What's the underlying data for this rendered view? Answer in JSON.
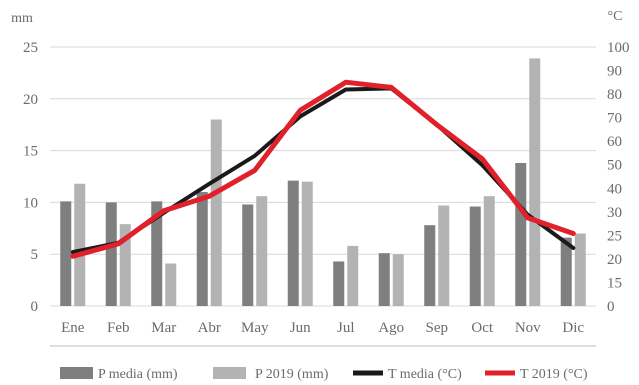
{
  "chart_data": {
    "type": "bar",
    "categories": [
      "Ene",
      "Feb",
      "Mar",
      "Abr",
      "May",
      "Jun",
      "Jul",
      "Ago",
      "Sep",
      "Oct",
      "Nov",
      "Dic"
    ],
    "left_axis": {
      "unit": "mm",
      "ylim": [
        0,
        25
      ],
      "ticks": [
        "0",
        "5",
        "10",
        "15",
        "20",
        "25"
      ]
    },
    "right_axis": {
      "unit": "°C",
      "ylim": [
        0,
        100
      ],
      "ticks": [
        "0",
        "15",
        "20",
        "25",
        "30",
        "40",
        "50",
        "60",
        "70",
        "80",
        "90",
        "100"
      ]
    },
    "grid": true,
    "legend_position": "bottom",
    "series": [
      {
        "name": "P media (mm)",
        "kind": "bar",
        "axis": "left",
        "color": "#7f7f7f",
        "values": [
          10.1,
          10.0,
          10.1,
          11.0,
          9.8,
          12.1,
          4.3,
          5.1,
          7.8,
          9.6,
          13.8,
          6.6
        ]
      },
      {
        "name": "P 2019 (mm)",
        "kind": "bar",
        "axis": "left",
        "color": "#b3b3b3",
        "values": [
          11.8,
          7.9,
          4.1,
          18.0,
          10.6,
          12.0,
          5.8,
          5.0,
          9.7,
          10.6,
          23.9,
          7.0
        ]
      },
      {
        "name": "T media (°C)",
        "kind": "line",
        "axis": "left",
        "color": "#1a1a1a",
        "values": [
          5.2,
          6.1,
          9.0,
          11.8,
          14.5,
          18.3,
          20.9,
          21.0,
          17.5,
          13.6,
          8.8,
          5.6
        ]
      },
      {
        "name": "T 2019 (°C)",
        "kind": "line",
        "axis": "left",
        "color": "#e0202a",
        "values": [
          4.8,
          6.0,
          9.2,
          10.6,
          13.1,
          18.9,
          21.6,
          21.1,
          17.5,
          14.2,
          8.5,
          7.0
        ]
      }
    ]
  }
}
